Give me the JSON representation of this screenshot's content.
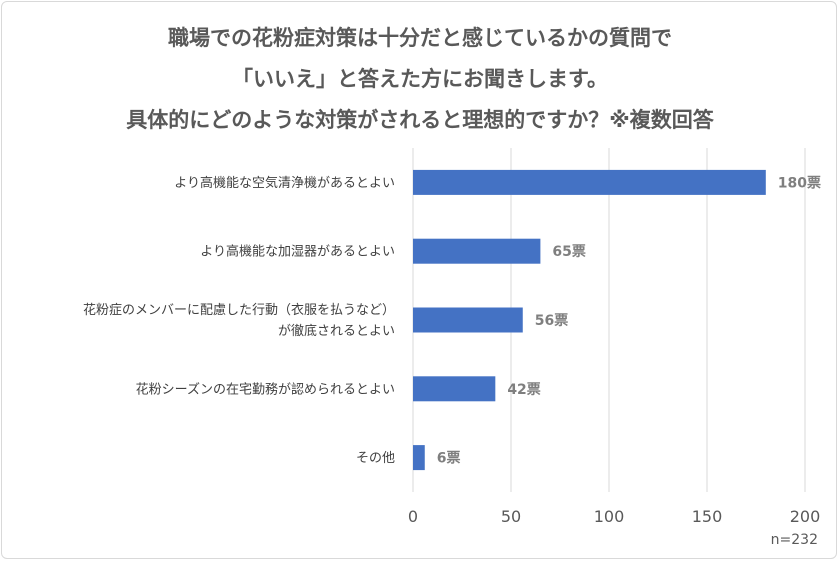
{
  "chart_data": {
    "type": "bar",
    "orientation": "horizontal",
    "title_lines": [
      "職場での花粉症対策は十分だと感じているかの質問で",
      "「いいえ」と答えた方にお聞きします。",
      "具体的にどのような対策がされると理想的ですか？※複数回答"
    ],
    "categories": [
      [
        "より高機能な空気清浄機があるとよい"
      ],
      [
        "より高機能な加湿器があるとよい"
      ],
      [
        "花粉症のメンバーに配慮した行動（衣服を払うなど）",
        "が徹底されるとよい"
      ],
      [
        "花粉シーズンの在宅勤務が認められるとよい"
      ],
      [
        "その他"
      ]
    ],
    "values": [
      180,
      65,
      56,
      42,
      6
    ],
    "value_suffix": "票",
    "xlim": [
      0,
      200
    ],
    "xticks": [
      0,
      50,
      100,
      150,
      200
    ],
    "grid": true,
    "bar_color": "#4472c4",
    "note": "n=232"
  }
}
